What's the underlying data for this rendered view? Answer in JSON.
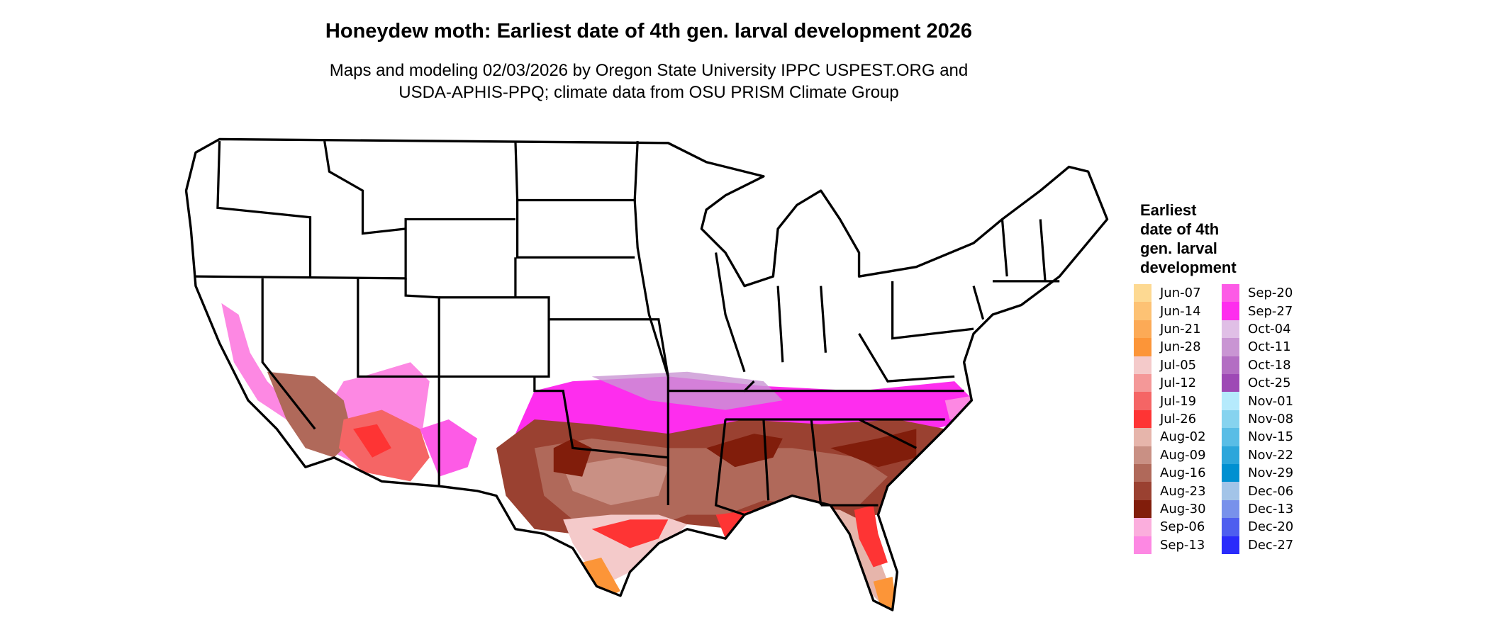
{
  "title": "Honeydew moth: Earliest date of 4th gen. larval development 2026",
  "subtitle": [
    "Maps and modeling 02/03/2026 by Oregon State University IPPC USPEST.ORG and",
    "USDA-APHIS-PPQ; climate data from OSU PRISM Climate Group"
  ],
  "legend": {
    "title": [
      "Earliest",
      "date of 4th",
      "gen. larval",
      "development"
    ],
    "items": [
      {
        "label": "Jun-07",
        "color": "#FDD992"
      },
      {
        "label": "Jun-14",
        "color": "#FDC274"
      },
      {
        "label": "Jun-21",
        "color": "#FCAA56"
      },
      {
        "label": "Jun-28",
        "color": "#FC9538"
      },
      {
        "label": "Jul-05",
        "color": "#F4CACA"
      },
      {
        "label": "Jul-12",
        "color": "#F49898"
      },
      {
        "label": "Jul-19",
        "color": "#F56565"
      },
      {
        "label": "Jul-26",
        "color": "#FE3434"
      },
      {
        "label": "Aug-02",
        "color": "#E6B5AB"
      },
      {
        "label": "Aug-09",
        "color": "#C99084"
      },
      {
        "label": "Aug-16",
        "color": "#B0695A"
      },
      {
        "label": "Aug-23",
        "color": "#9A4131"
      },
      {
        "label": "Aug-30",
        "color": "#811D0B"
      },
      {
        "label": "Sep-06",
        "color": "#FBAEDD"
      },
      {
        "label": "Sep-13",
        "color": "#FD88E3"
      },
      {
        "label": "Sep-20",
        "color": "#FD5BE6"
      },
      {
        "label": "Sep-27",
        "color": "#FE2DEE"
      },
      {
        "label": "Oct-04",
        "color": "#E0BFE6"
      },
      {
        "label": "Oct-11",
        "color": "#C995D3"
      },
      {
        "label": "Oct-18",
        "color": "#B36EC3"
      },
      {
        "label": "Oct-25",
        "color": "#9E49B5"
      },
      {
        "label": "Nov-01",
        "color": "#B5EAFC"
      },
      {
        "label": "Nov-08",
        "color": "#86D3EF"
      },
      {
        "label": "Nov-15",
        "color": "#59BDE6"
      },
      {
        "label": "Nov-22",
        "color": "#2CA6DB"
      },
      {
        "label": "Nov-29",
        "color": "#0090D1"
      },
      {
        "label": "Dec-06",
        "color": "#A3C4E8"
      },
      {
        "label": "Dec-13",
        "color": "#7891EB"
      },
      {
        "label": "Dec-20",
        "color": "#4E5EEF"
      },
      {
        "label": "Dec-27",
        "color": "#2A2BFB"
      }
    ]
  }
}
